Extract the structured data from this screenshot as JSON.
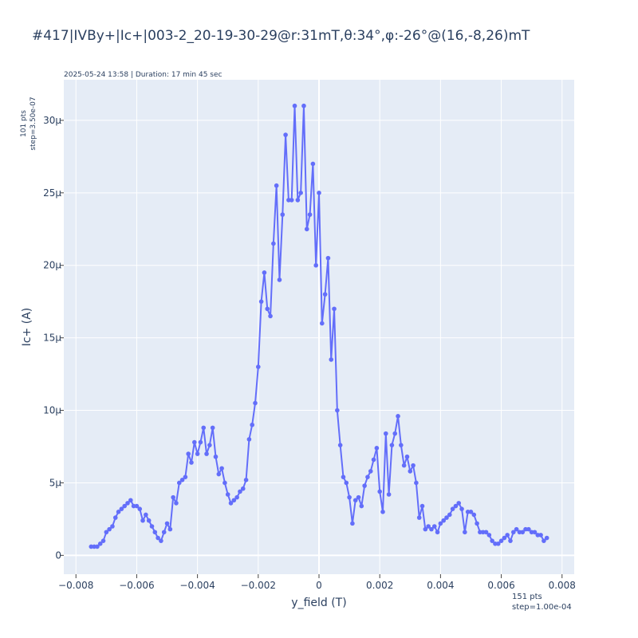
{
  "chart_data": {
    "type": "line",
    "title": "#417|IVBy+|Ic+|003-2_20-19-30-29@r:31mT,θ:34°,φ:-26°@(16,-8,26)mT",
    "subtitle": "2025-05-24 13:58 | Duration: 17 min 45 sec",
    "xlabel": "y_field (T)",
    "ylabel": "Ic+ (A)",
    "x_note": [
      "151 pts",
      "step=1.00e-04"
    ],
    "y_note": [
      "101 pts",
      "step=3.50e-07"
    ],
    "xlim": [
      -0.0084,
      0.0084
    ],
    "ylim": [
      -1.3e-06,
      3.28e-05
    ],
    "x_ticks": [
      -0.008,
      -0.006,
      -0.004,
      -0.002,
      0,
      0.002,
      0.004,
      0.006,
      0.008
    ],
    "x_tick_labels": [
      "−0.008",
      "−0.006",
      "−0.004",
      "−0.002",
      "0",
      "0.002",
      "0.004",
      "0.006",
      "0.008"
    ],
    "y_ticks": [
      0,
      5e-06,
      1e-05,
      1.5e-05,
      2e-05,
      2.5e-05,
      3e-05
    ],
    "y_tick_labels": [
      "0",
      "5μ",
      "10μ",
      "15μ",
      "20μ",
      "25μ",
      "30μ"
    ],
    "grid": true,
    "series": [
      {
        "color": "#636efa",
        "x": [
          -0.0075,
          -0.0074,
          -0.0073,
          -0.0072,
          -0.0071,
          -0.007,
          -0.0069,
          -0.0068,
          -0.0067,
          -0.0066,
          -0.0065,
          -0.0064,
          -0.0063,
          -0.0062,
          -0.0061,
          -0.006,
          -0.0059,
          -0.0058,
          -0.0057,
          -0.0056,
          -0.0055,
          -0.0054,
          -0.0053,
          -0.0052,
          -0.0051,
          -0.005,
          -0.0049,
          -0.0048,
          -0.0047,
          -0.0046,
          -0.0045,
          -0.0044,
          -0.0043,
          -0.0042,
          -0.0041,
          -0.004,
          -0.0039,
          -0.0038,
          -0.0037,
          -0.0036,
          -0.0035,
          -0.0034,
          -0.0033,
          -0.0032,
          -0.0031,
          -0.003,
          -0.0029,
          -0.0028,
          -0.0027,
          -0.0026,
          -0.0025,
          -0.0024,
          -0.0023,
          -0.0022,
          -0.0021,
          -0.002,
          -0.0019,
          -0.0018,
          -0.0017,
          -0.0016,
          -0.0015,
          -0.0014,
          -0.0013,
          -0.0012,
          -0.0011,
          -0.001,
          -0.0009,
          -0.0008,
          -0.0007,
          -0.0006,
          -0.0005,
          -0.0004,
          -0.0003,
          -0.0002,
          -0.0001,
          0.0,
          0.0001,
          0.0002,
          0.0003,
          0.0004,
          0.0005,
          0.0006,
          0.0007,
          0.0008,
          0.0009,
          0.001,
          0.0011,
          0.0012,
          0.0013,
          0.0014,
          0.0015,
          0.0016,
          0.0017,
          0.0018,
          0.0019,
          0.002,
          0.0021,
          0.0022,
          0.0023,
          0.0024,
          0.0025,
          0.0026,
          0.0027,
          0.0028,
          0.0029,
          0.003,
          0.0031,
          0.0032,
          0.0033,
          0.0034,
          0.0035,
          0.0036,
          0.0037,
          0.0038,
          0.0039,
          0.004,
          0.0041,
          0.0042,
          0.0043,
          0.0044,
          0.0045,
          0.0046,
          0.0047,
          0.0048,
          0.0049,
          0.005,
          0.0051,
          0.0052,
          0.0053,
          0.0054,
          0.0055,
          0.0056,
          0.0057,
          0.0058,
          0.0059,
          0.006,
          0.0061,
          0.0062,
          0.0063,
          0.0064,
          0.0065,
          0.0066,
          0.0067,
          0.0068,
          0.0069,
          0.007,
          0.0071,
          0.0072,
          0.0073,
          0.0074,
          0.0075
        ],
        "y": [
          6e-07,
          6e-07,
          6e-07,
          8e-07,
          1e-06,
          1.6e-06,
          1.8e-06,
          2e-06,
          2.6e-06,
          3e-06,
          3.2e-06,
          3.4e-06,
          3.6e-06,
          3.8e-06,
          3.4e-06,
          3.4e-06,
          3.2e-06,
          2.4e-06,
          2.8e-06,
          2.4e-06,
          2e-06,
          1.6e-06,
          1.2e-06,
          1e-06,
          1.6e-06,
          2.2e-06,
          1.8e-06,
          4e-06,
          3.6e-06,
          5e-06,
          5.2e-06,
          5.4e-06,
          7e-06,
          6.4e-06,
          7.8e-06,
          7e-06,
          7.8e-06,
          8.8e-06,
          7e-06,
          7.6e-06,
          8.8e-06,
          6.8e-06,
          5.6e-06,
          6e-06,
          5e-06,
          4.2e-06,
          3.6e-06,
          3.8e-06,
          4e-06,
          4.4e-06,
          4.6e-06,
          5.2e-06,
          8e-06,
          9e-06,
          1.05e-05,
          1.3e-05,
          1.75e-05,
          1.95e-05,
          1.7e-05,
          1.65e-05,
          2.15e-05,
          2.55e-05,
          1.9e-05,
          2.35e-05,
          2.9e-05,
          2.45e-05,
          2.45e-05,
          3.1e-05,
          2.45e-05,
          2.5e-05,
          3.1e-05,
          2.25e-05,
          2.35e-05,
          2.7e-05,
          2e-05,
          2.5e-05,
          1.6e-05,
          1.8e-05,
          2.05e-05,
          1.35e-05,
          1.7e-05,
          1e-05,
          7.6e-06,
          5.4e-06,
          5e-06,
          4e-06,
          2.2e-06,
          3.8e-06,
          4e-06,
          3.4e-06,
          4.8e-06,
          5.4e-06,
          5.8e-06,
          6.6e-06,
          7.4e-06,
          4.4e-06,
          3e-06,
          8.4e-06,
          4.2e-06,
          7.6e-06,
          8.4e-06,
          9.6e-06,
          7.6e-06,
          6.2e-06,
          6.8e-06,
          5.8e-06,
          6.2e-06,
          5e-06,
          2.6e-06,
          3.4e-06,
          1.8e-06,
          2e-06,
          1.8e-06,
          2e-06,
          1.6e-06,
          2.2e-06,
          2.4e-06,
          2.6e-06,
          2.8e-06,
          3.2e-06,
          3.4e-06,
          3.6e-06,
          3.2e-06,
          1.6e-06,
          3e-06,
          3e-06,
          2.8e-06,
          2.2e-06,
          1.6e-06,
          1.6e-06,
          1.6e-06,
          1.4e-06,
          1e-06,
          8e-07,
          8e-07,
          1e-06,
          1.2e-06,
          1.4e-06,
          1e-06,
          1.6e-06,
          1.8e-06,
          1.6e-06,
          1.6e-06,
          1.8e-06,
          1.8e-06,
          1.6e-06,
          1.6e-06,
          1.4e-06,
          1.4e-06,
          1e-06,
          1.2e-06
        ]
      }
    ]
  }
}
